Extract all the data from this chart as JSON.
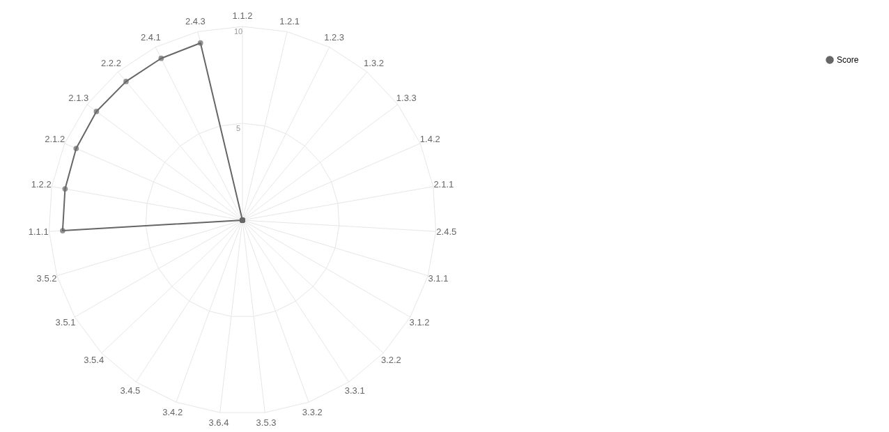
{
  "chart_data": {
    "type": "radar",
    "categories": [
      "1.1.2",
      "1.2.1",
      "1.2.3",
      "1.3.2",
      "1.3.3",
      "1.4.2",
      "2.1.1",
      "2.4.5",
      "3.1.1",
      "3.1.2",
      "3.2.2",
      "3.3.1",
      "3.3.2",
      "3.5.3",
      "3.6.4",
      "3.4.2",
      "3.4.5",
      "3.5.4",
      "3.5.1",
      "3.5.2",
      "1.1.1",
      "1.2.2",
      "2.1.2",
      "2.1.3",
      "2.2.2",
      "2.4.1",
      "2.4.3"
    ],
    "series": [
      {
        "name": "Score",
        "color": "#666666",
        "values": [
          0,
          0,
          0,
          0,
          0,
          0,
          0,
          0,
          0,
          0,
          0,
          0,
          0,
          0,
          0,
          0,
          0,
          0,
          0,
          0,
          9.3,
          9.3,
          9.35,
          9.4,
          9.35,
          9.35,
          9.4
        ]
      }
    ],
    "ylim": [
      0,
      10
    ],
    "yticks": [
      5,
      10
    ],
    "grid": true,
    "legend": "top right",
    "marker": "circle"
  }
}
